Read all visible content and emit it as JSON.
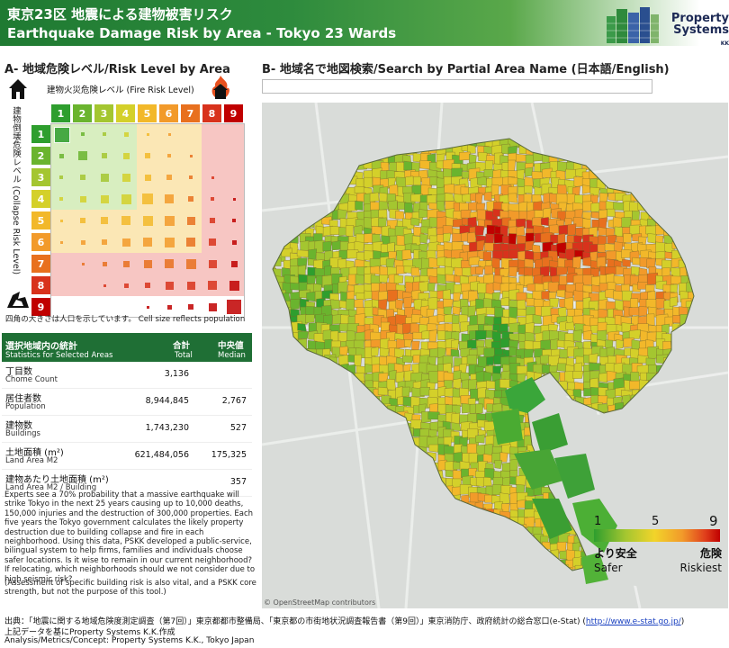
{
  "header": {
    "title_jp": "東京23区 地震による建物被害リスク",
    "title_en": "Earthquake Damage Risk by Area - Tokyo 23 Wards",
    "logo_line1": "Property",
    "logo_line2": "Systems",
    "logo_kk": "KK"
  },
  "section_a": {
    "title": "A- 地域危険レベル/Risk Level by Area",
    "fire_label": "建物火災危険レベル (Fire Risk Level)",
    "collapse_label": "建物倒壊危険レベル (Collapse Risk Level)",
    "col_headers": [
      "1",
      "2",
      "3",
      "4",
      "5",
      "6",
      "7",
      "8",
      "9"
    ],
    "row_headers": [
      "1",
      "2",
      "3",
      "4",
      "5",
      "6",
      "7",
      "8",
      "9"
    ],
    "caption": "四角の大きさは人口を示しています。 Cell size reflects population"
  },
  "section_b": {
    "title": "B- 地域名で地図検索/Search by Partial Area Name (日本語/English)",
    "search_value": "",
    "search_placeholder": "",
    "osm_credit": "© OpenStreetMap contributors"
  },
  "stats": {
    "header_jp": "選択地域内の統計",
    "header_en": "Statistics for Selected Areas",
    "total_jp": "合計",
    "total_en": "Total",
    "median_jp": "中央値",
    "median_en": "Median",
    "rows": [
      {
        "label_jp": "丁目数",
        "label_en": "Chome Count",
        "total": "3,136",
        "median": ""
      },
      {
        "label_jp": "居住者数",
        "label_en": "Population",
        "total": "8,944,845",
        "median": "2,767"
      },
      {
        "label_jp": "建物数",
        "label_en": "Buildings",
        "total": "1,743,230",
        "median": "527"
      },
      {
        "label_jp": "土地面積 (m²)",
        "label_en": "Land Area M2",
        "total": "621,484,056",
        "median": "175,325"
      },
      {
        "label_jp": "建物あたり土地面積 (m²)",
        "label_en": "Land Area M2 / Building",
        "total": "",
        "median": "357"
      }
    ]
  },
  "description": {
    "p1": "Experts see a 70% probability that a massive earthquake will strike Tokyo  in the next 25 years causing up to 10,000 deaths, 150,000 injuries and the destruction of 300,000 properties. Each five years the Tokyo government calculates the likely property destruction due to building collapse and fire in each neighborhood. Using this data, PSKK developed a public-service, bilingual system to help firms, families and individuals choose safer locations. Is it wise to remain in our current neighborhood? If relocating, which neighborhoods should we not consider due to high seismic risk?",
    "p2": "(Assessment of specific building risk is also vital, and a PSKK core strength, but not the purpose of this tool.)"
  },
  "legend": {
    "min": "1",
    "mid": "5",
    "max": "9",
    "safe_jp": "より安全",
    "safe_en": "Safer",
    "risk_jp": "危険",
    "risk_en": "Riskiest"
  },
  "footer": {
    "source_text": "出典：「地震に関する地域危険度測定調査（第7回）」東京都都市整備局、「東京都の市街地状況調査報告書（第9回）」東京消防庁、政府統計の総合窓口(e-Stat) (",
    "source_link": "http://www.e-stat.go.jp/",
    "source_end": ")",
    "line2": "上記データを基にProperty Systems K.K.作成",
    "line3": "Analysis/Metrics/Concept: Property Systems K.K., Tokyo Japan"
  },
  "colors": {
    "header_green": "#1f7a32",
    "risk_scale": [
      "#2e9e2e",
      "#6ab42e",
      "#a4c630",
      "#d4d02a",
      "#f2b82a",
      "#f29a2a",
      "#e8701e",
      "#d8321c",
      "#c00000"
    ]
  }
}
